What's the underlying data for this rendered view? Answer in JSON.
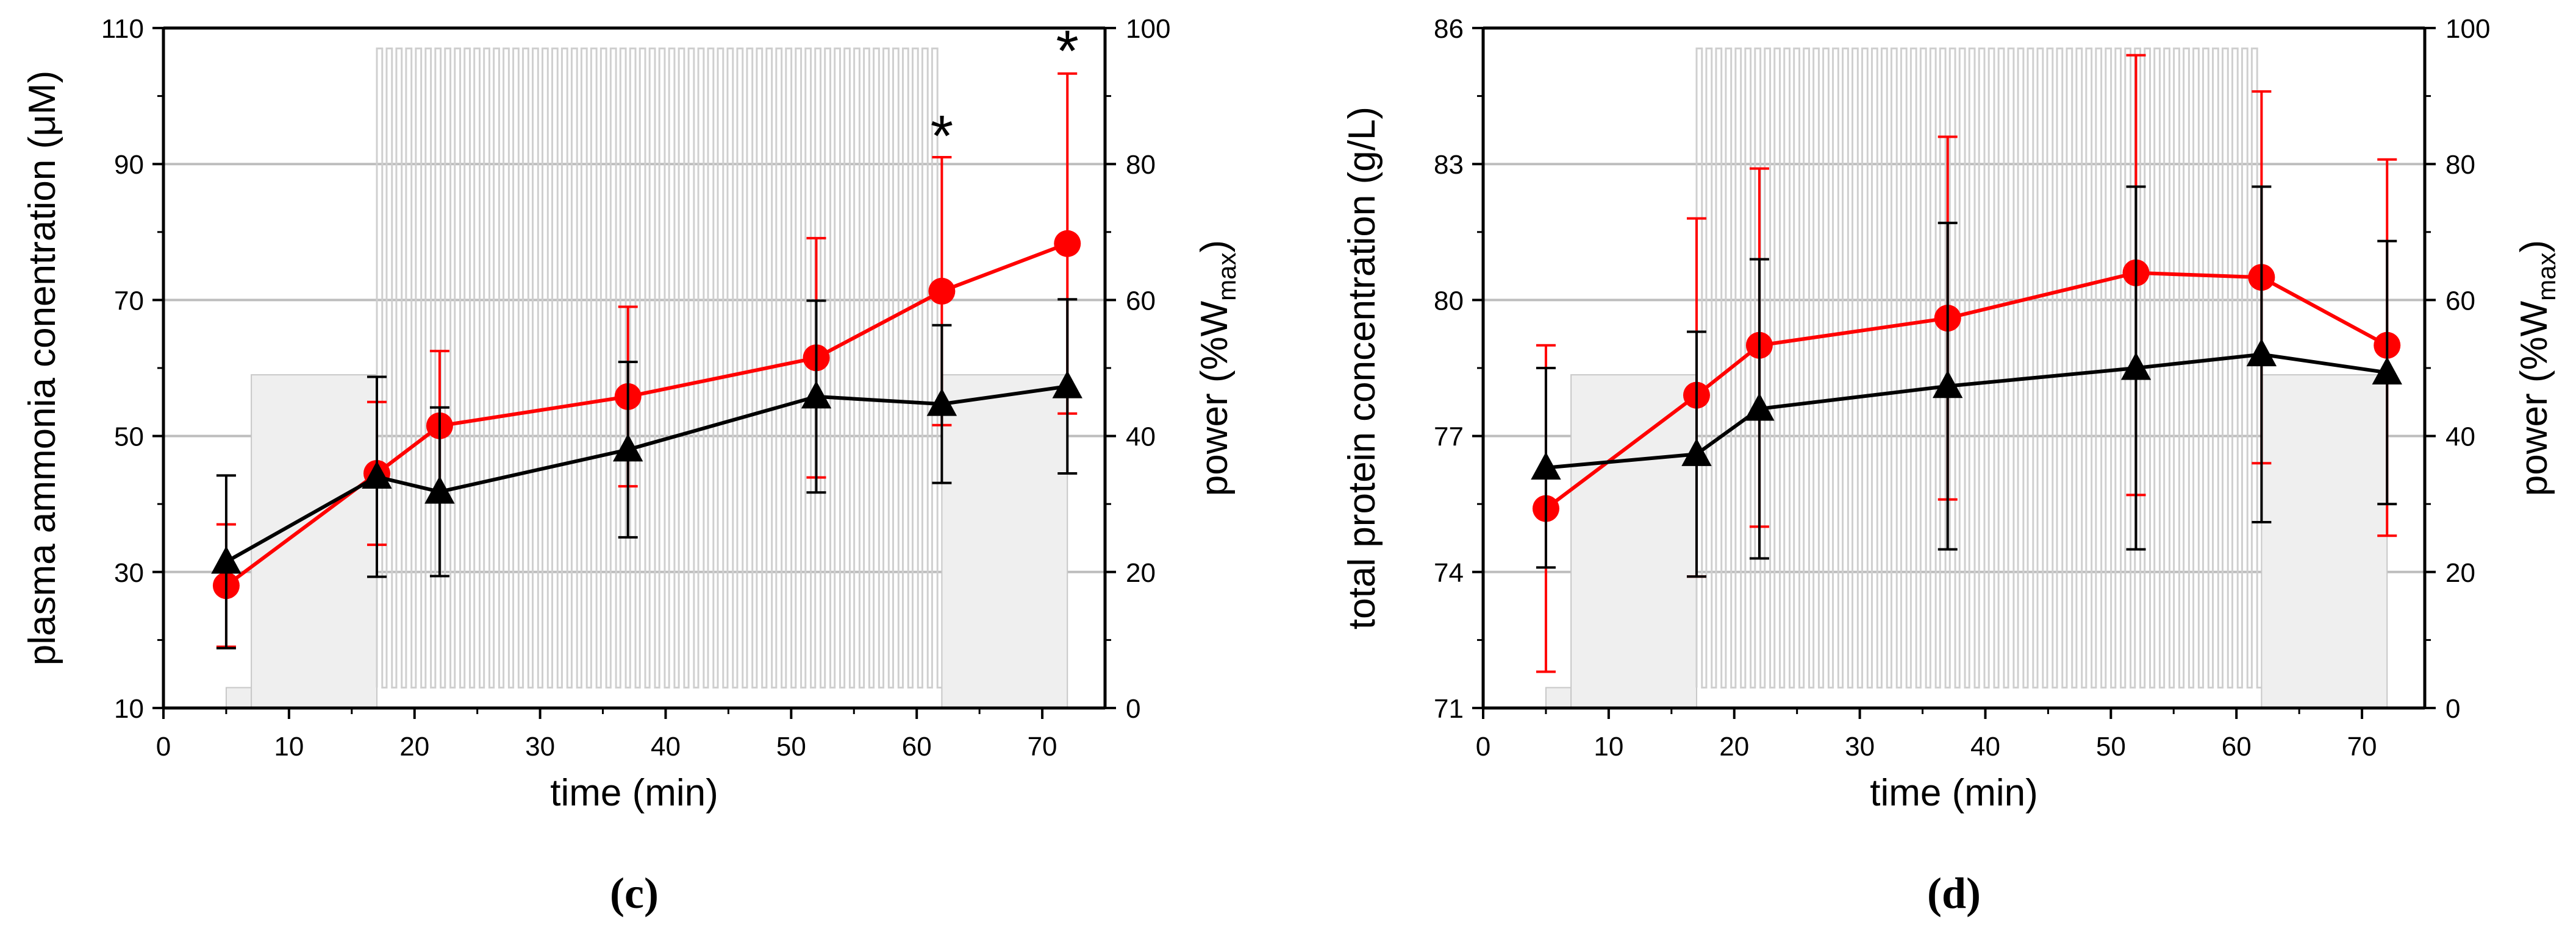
{
  "chart_data": [
    {
      "type": "line",
      "panel_label": "(c)",
      "xlabel": "time (min)",
      "ylabel": "plasma ammonia conentration (μM)",
      "y2label_main": "power (%W",
      "y2label_sub": "max",
      "y2label_close": ")",
      "xlim": [
        0,
        75
      ],
      "ylim": [
        10,
        110
      ],
      "y2lim": [
        0,
        100
      ],
      "xticks": [
        "0",
        "10",
        "20",
        "30",
        "40",
        "50",
        "60",
        "70"
      ],
      "yticks": [
        "10",
        "30",
        "50",
        "70",
        "90",
        "110"
      ],
      "y2ticks": [
        "0",
        "20",
        "40",
        "60",
        "80",
        "100"
      ],
      "series": [
        {
          "name": "red",
          "color": "#ff0000",
          "marker": "circle",
          "x": [
            5,
            17,
            22,
            37,
            52,
            62,
            72
          ],
          "values": [
            28,
            44.5,
            51.5,
            55.8,
            61.5,
            71.3,
            78.3
          ],
          "err_upper": [
            9,
            10.5,
            11,
            13.2,
            17.6,
            19.7,
            25
          ],
          "err_lower": [
            9,
            10.5,
            11,
            13.2,
            17.6,
            19.7,
            25
          ]
        },
        {
          "name": "black",
          "color": "#000000",
          "marker": "triangle",
          "x": [
            5,
            17,
            22,
            37,
            52,
            62,
            72
          ],
          "values": [
            31.5,
            44,
            41.8,
            48,
            55.8,
            54.7,
            57.3
          ],
          "err_upper": [
            12.7,
            14.7,
            12.4,
            12.9,
            14.1,
            11.6,
            12.8
          ],
          "err_lower": [
            12.7,
            14.7,
            12.4,
            12.9,
            14.1,
            11.6,
            12.8
          ]
        }
      ],
      "annotations": [
        {
          "text": "*",
          "x": 62,
          "y": 95.5
        },
        {
          "text": "*",
          "x": 72,
          "y": 108
        }
      ],
      "power_profile": {
        "rest_start": 5,
        "rest_end": 7,
        "rest_level": 3,
        "warmup_start": 7,
        "warmup_end": 17,
        "warmup_level": 49,
        "interval_start": 17,
        "interval_end": 62,
        "interval_high": 97,
        "interval_low": 3,
        "interval_count": 58,
        "cooldown_start": 62,
        "cooldown_end": 72,
        "cooldown_level": 49
      }
    },
    {
      "type": "line",
      "panel_label": "(d)",
      "xlabel": "time (min)",
      "ylabel": "total protein concentration (g/L)",
      "y2label_main": "power (%W",
      "y2label_sub": "max",
      "y2label_close": ")",
      "xlim": [
        0,
        75
      ],
      "ylim": [
        71,
        86
      ],
      "y2lim": [
        0,
        100
      ],
      "xticks": [
        "0",
        "10",
        "20",
        "30",
        "40",
        "50",
        "60",
        "70"
      ],
      "yticks": [
        "71",
        "74",
        "77",
        "80",
        "83",
        "86"
      ],
      "y2ticks": [
        "0",
        "20",
        "40",
        "60",
        "80",
        "100"
      ],
      "series": [
        {
          "name": "red",
          "color": "#ff0000",
          "marker": "circle",
          "x": [
            5,
            17,
            22,
            37,
            52,
            62,
            72
          ],
          "values": [
            75.4,
            77.9,
            79,
            79.6,
            80.6,
            80.5,
            79
          ],
          "err_upper": [
            3.6,
            3.9,
            3.9,
            4,
            4.8,
            4.1,
            4.1
          ],
          "err_lower": [
            3.6,
            4,
            4,
            4,
            4.9,
            4.1,
            4.2
          ]
        },
        {
          "name": "black",
          "color": "#000000",
          "marker": "triangle",
          "x": [
            5,
            17,
            22,
            37,
            52,
            62,
            72
          ],
          "values": [
            76.3,
            76.6,
            77.6,
            78.1,
            78.5,
            78.8,
            78.4
          ],
          "err_upper": [
            2.2,
            2.7,
            3.3,
            3.6,
            4,
            3.7,
            2.9
          ],
          "err_lower": [
            2.2,
            2.7,
            3.3,
            3.6,
            4,
            3.7,
            2.9
          ]
        }
      ],
      "annotations": [],
      "power_profile": {
        "rest_start": 5,
        "rest_end": 7,
        "rest_level": 3,
        "warmup_start": 7,
        "warmup_end": 17,
        "warmup_level": 49,
        "interval_start": 17,
        "interval_end": 62,
        "interval_high": 97,
        "interval_low": 3,
        "interval_count": 58,
        "cooldown_start": 62,
        "cooldown_end": 72,
        "cooldown_level": 49
      }
    }
  ]
}
